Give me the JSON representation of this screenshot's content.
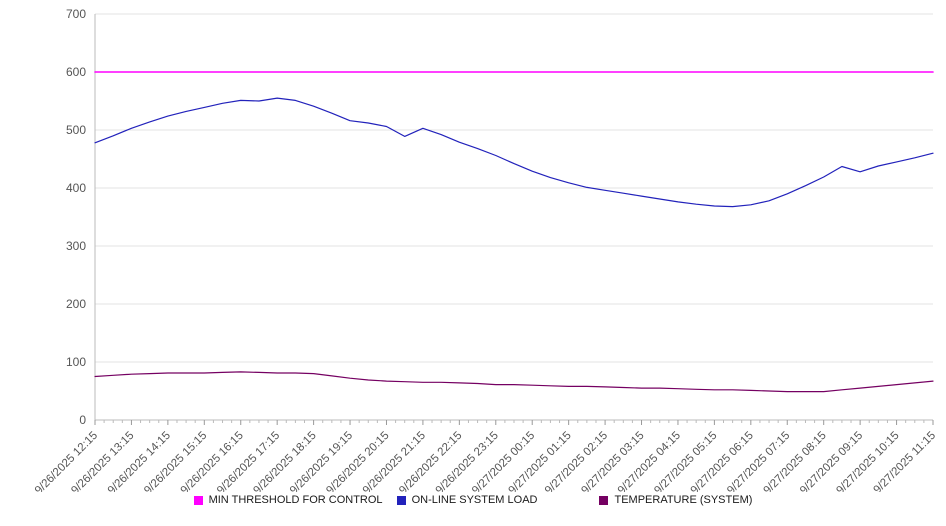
{
  "chart_data": {
    "type": "line",
    "title": "",
    "xlabel": "",
    "ylabel": "",
    "ylim": [
      0,
      700
    ],
    "yticks": [
      0,
      100,
      200,
      300,
      400,
      500,
      600,
      700
    ],
    "grid": true,
    "legend_position": "bottom",
    "axis_text_color": "#555555",
    "gridline_color": "#e3e3e3",
    "axis_line_color": "#bbbbbb",
    "tick_color": "#999999",
    "x_labels": [
      "9/26/2025 12:15",
      "9/26/2025 13:15",
      "9/26/2025 14:15",
      "9/26/2025 15:15",
      "9/26/2025 16:15",
      "9/26/2025 17:15",
      "9/26/2025 18:15",
      "9/26/2025 19:15",
      "9/26/2025 20:15",
      "9/26/2025 21:15",
      "9/26/2025 22:15",
      "9/26/2025 23:15",
      "9/27/2025 00:15",
      "9/27/2025 01:15",
      "9/27/2025 02:15",
      "9/27/2025 03:15",
      "9/27/2025 04:15",
      "9/27/2025 05:15",
      "9/27/2025 06:15",
      "9/27/2025 07:15",
      "9/27/2025 08:15",
      "9/27/2025 09:15",
      "9/27/2025 10:15",
      "9/27/2025 11:15"
    ],
    "sampling": "every 30 minutes from 12:15 to 11:15",
    "series": [
      {
        "name": "MIN THRESHOLD FOR CONTROL",
        "color": "#ff00ff",
        "stroke_width": 1.6,
        "values": [
          600
        ]
      },
      {
        "name": "ON-LINE SYSTEM LOAD",
        "color": "#2222bb",
        "stroke_width": 1.2,
        "values": [
          478,
          490,
          503,
          514,
          524,
          532,
          539,
          546,
          551,
          550,
          555,
          551,
          541,
          529,
          516,
          512,
          506,
          489,
          503,
          492,
          479,
          468,
          456,
          442,
          429,
          418,
          409,
          401,
          396,
          391,
          386,
          381,
          376,
          372,
          369,
          368,
          371,
          378,
          390,
          404,
          419,
          437,
          428,
          438,
          445,
          452,
          460
        ]
      },
      {
        "name": "TEMPERATURE (SYSTEM)",
        "color": "#750062",
        "stroke_width": 1.2,
        "values": [
          75,
          77,
          79,
          80,
          81,
          81,
          81,
          82,
          83,
          82,
          81,
          81,
          80,
          76,
          72,
          69,
          67,
          66,
          65,
          65,
          64,
          63,
          61,
          61,
          60,
          59,
          58,
          58,
          57,
          56,
          55,
          55,
          54,
          53,
          52,
          52,
          51,
          50,
          49,
          49,
          49,
          52,
          55,
          58,
          61,
          64,
          67
        ]
      }
    ]
  }
}
